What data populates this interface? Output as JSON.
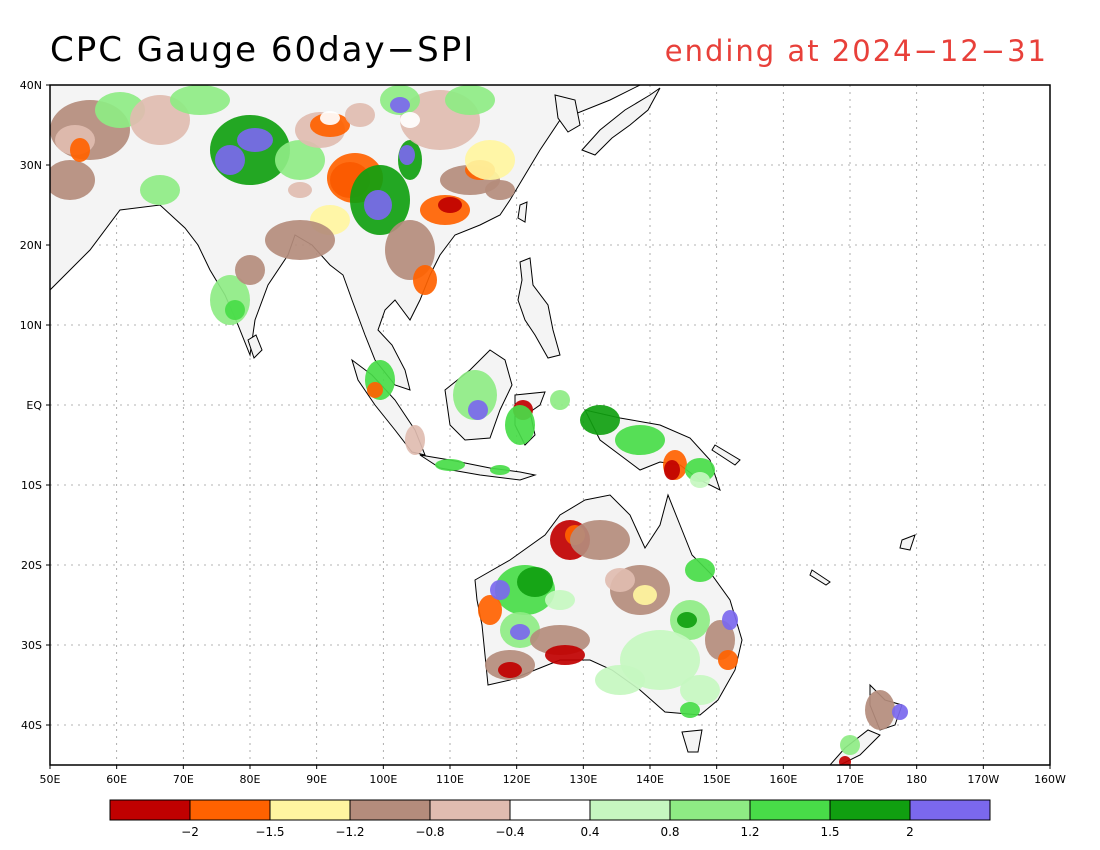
{
  "title": "CPC Gauge 60day−SPI",
  "subtitle": "ending at 2024−12−31",
  "map": {
    "lat_labels": [
      "40N",
      "30N",
      "20N",
      "10N",
      "EQ",
      "10S",
      "20S",
      "30S",
      "40S"
    ],
    "lat_values": [
      40,
      30,
      20,
      10,
      0,
      -10,
      -20,
      -30,
      -40
    ],
    "lon_labels": [
      "50E",
      "60E",
      "70E",
      "80E",
      "90E",
      "100E",
      "110E",
      "120E",
      "130E",
      "140E",
      "150E",
      "160E",
      "170E",
      "180",
      "170W",
      "160W"
    ],
    "lon_values": [
      50,
      60,
      70,
      80,
      90,
      100,
      110,
      120,
      130,
      140,
      150,
      160,
      170,
      180,
      190,
      200
    ],
    "lon_range": [
      50,
      200
    ],
    "lat_range": [
      -45,
      40
    ],
    "grid": "dotted"
  },
  "legend": {
    "colors": [
      "#c00000",
      "#ff6200",
      "#fff5a0",
      "#b48c7c",
      "#e0bcb0",
      "#ffffff",
      "#c6f7c0",
      "#8eeb84",
      "#48dc48",
      "#109f10",
      "#7b68ee"
    ],
    "labels": [
      "−2",
      "−1.5",
      "−1.2",
      "−0.8",
      "−0.4",
      "0.4",
      "0.8",
      "1.2",
      "1.5",
      "2"
    ]
  }
}
